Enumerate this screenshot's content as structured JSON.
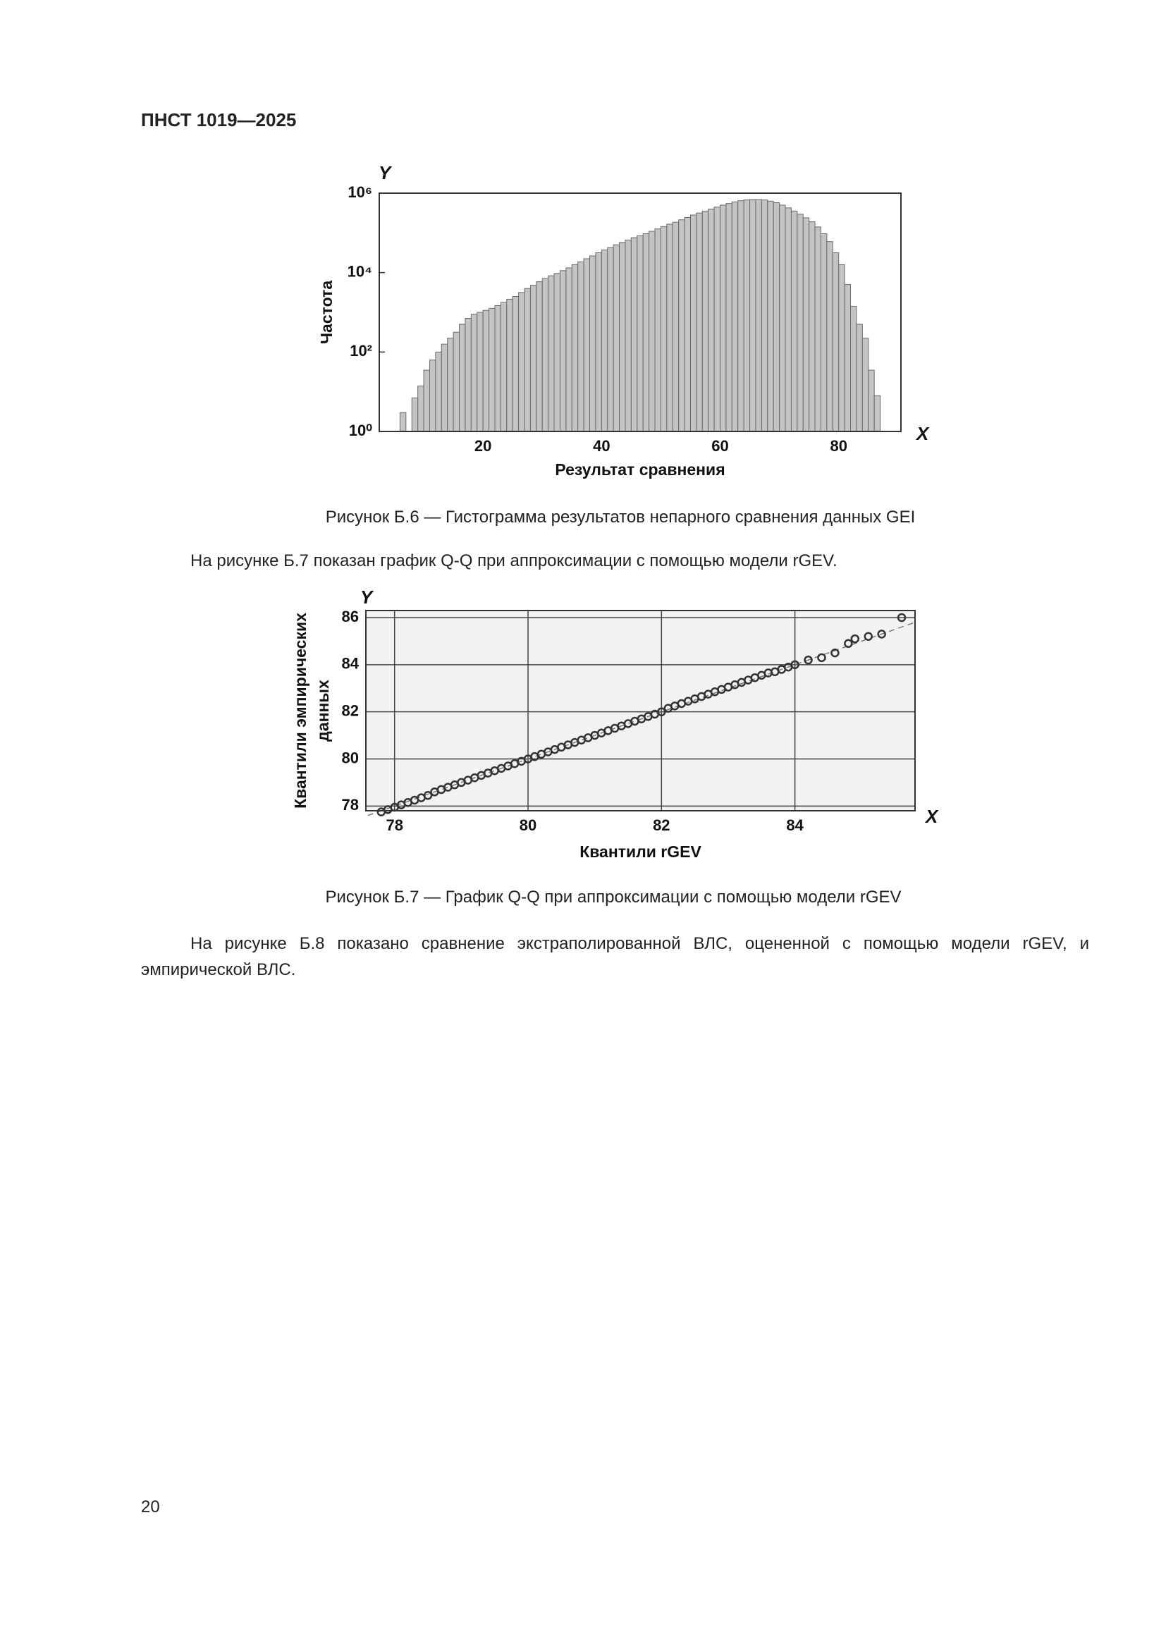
{
  "header": {
    "title": "ПНСТ 1019—2025"
  },
  "chart_data": [
    {
      "type": "histogram",
      "y_axis_letter": "Y",
      "x_axis_letter": "X",
      "ylabel": "Частота",
      "xlabel": "Результат сравнения",
      "bins": [
        6,
        7,
        8,
        9,
        10,
        11,
        12,
        13,
        14,
        15,
        16,
        17,
        18,
        19,
        20,
        21,
        22,
        23,
        24,
        25,
        26,
        27,
        28,
        29,
        30,
        31,
        32,
        33,
        34,
        35,
        36,
        37,
        38,
        39,
        40,
        41,
        42,
        43,
        44,
        45,
        46,
        47,
        48,
        49,
        50,
        51,
        52,
        53,
        54,
        55,
        56,
        57,
        58,
        59,
        60,
        61,
        62,
        63,
        64,
        65,
        66,
        67,
        68,
        69,
        70,
        71,
        72,
        73,
        74,
        75,
        76,
        77,
        78,
        79,
        80,
        81,
        82,
        83,
        84,
        85,
        86,
        87
      ],
      "counts": [
        3,
        1,
        7,
        14,
        35,
        63,
        100,
        158,
        224,
        316,
        501,
        708,
        891,
        1000,
        1122,
        1259,
        1479,
        1778,
        2138,
        2512,
        3162,
        3981,
        4786,
        5888,
        7079,
        8318,
        9550,
        11220,
        13183,
        15849,
        18621,
        22387,
        26303,
        31623,
        37154,
        42658,
        50119,
        57544,
        66069,
        75858,
        85114,
        95499,
        109648,
        125893,
        144544,
        165959,
        186209,
        213796,
        245471,
        281838,
        316228,
        354813,
        398107,
        446684,
        501187,
        549541,
        602560,
        645654,
        676083,
        691831,
        691831,
        676083,
        630957,
        575440,
        501187,
        426580,
        354813,
        295121,
        239883,
        190546,
        141254,
        95499,
        60256,
        31623,
        15849,
        5012,
        1413,
        501,
        224,
        35,
        8
      ],
      "color": "#c4c4c4",
      "xlim": [
        2.5,
        90.5
      ],
      "xticks": [
        20,
        40,
        60,
        80
      ],
      "ylim": [
        1,
        1000000
      ],
      "log_y": true,
      "yticks": [
        {
          "value": 1,
          "label": "10⁰"
        },
        {
          "value": 100,
          "label": "10²"
        },
        {
          "value": 10000,
          "label": "10⁴"
        },
        {
          "value": 1000000,
          "label": "10⁶"
        }
      ],
      "grid": false
    },
    {
      "type": "scatter",
      "y_axis_letter": "Y",
      "x_axis_letter": "X",
      "ylabel": [
        "Квантили эмпирических",
        "данных"
      ],
      "xlabel": "Квантили rGEV",
      "x": [
        77.8,
        77.9,
        78.0,
        78.1,
        78.2,
        78.3,
        78.4,
        78.5,
        78.6,
        78.7,
        78.8,
        78.9,
        79.0,
        79.1,
        79.2,
        79.3,
        79.4,
        79.5,
        79.6,
        79.7,
        79.8,
        79.9,
        80.0,
        80.1,
        80.2,
        80.3,
        80.4,
        80.5,
        80.6,
        80.7,
        80.8,
        80.9,
        81.0,
        81.1,
        81.2,
        81.3,
        81.4,
        81.5,
        81.6,
        81.7,
        81.8,
        81.9,
        82.0,
        82.1,
        82.2,
        82.3,
        82.4,
        82.5,
        82.6,
        82.7,
        82.8,
        82.9,
        83.0,
        83.1,
        83.2,
        83.3,
        83.4,
        83.5,
        83.6,
        83.7,
        83.8,
        83.9,
        84.0,
        84.2,
        84.4,
        84.6,
        84.8,
        84.9,
        85.1,
        85.3,
        85.6
      ],
      "y": [
        77.75,
        77.85,
        77.95,
        78.05,
        78.15,
        78.25,
        78.35,
        78.45,
        78.6,
        78.7,
        78.8,
        78.9,
        79.0,
        79.1,
        79.2,
        79.3,
        79.4,
        79.5,
        79.6,
        79.7,
        79.8,
        79.9,
        80.0,
        80.1,
        80.2,
        80.3,
        80.4,
        80.5,
        80.6,
        80.7,
        80.8,
        80.9,
        81.0,
        81.1,
        81.2,
        81.3,
        81.4,
        81.5,
        81.6,
        81.7,
        81.8,
        81.9,
        82.0,
        82.15,
        82.25,
        82.35,
        82.45,
        82.55,
        82.65,
        82.75,
        82.85,
        82.95,
        83.05,
        83.15,
        83.25,
        83.35,
        83.45,
        83.55,
        83.65,
        83.7,
        83.8,
        83.9,
        84.0,
        84.2,
        84.3,
        84.5,
        84.9,
        85.1,
        85.2,
        85.3,
        86.0
      ],
      "color": "#333333",
      "reference_line": {
        "x": [
          77.6,
          85.8
        ],
        "y": [
          77.6,
          85.8
        ]
      },
      "xlim": [
        77.57,
        85.8
      ],
      "xticks": [
        78,
        80,
        82,
        84
      ],
      "ylim": [
        77.8,
        86.3
      ],
      "yticks": [
        78,
        80,
        82,
        84,
        86
      ],
      "grid": true
    }
  ],
  "captions": [
    "Рисунок Б.6 — Гистограмма результатов непарного сравнения данных GEI",
    "Рисунок Б.7 — График Q-Q при аппроксимации с помощью модели rGEV"
  ],
  "paragraphs": [
    "На рисунке Б.7 показан график Q-Q при аппроксимации с помощью модели rGEV.",
    "На рисунке Б.8 показано сравнение экстраполированной ВЛС, оцененной с помощью модели rGEV, и эмпирической ВЛС."
  ],
  "page_number": "20"
}
